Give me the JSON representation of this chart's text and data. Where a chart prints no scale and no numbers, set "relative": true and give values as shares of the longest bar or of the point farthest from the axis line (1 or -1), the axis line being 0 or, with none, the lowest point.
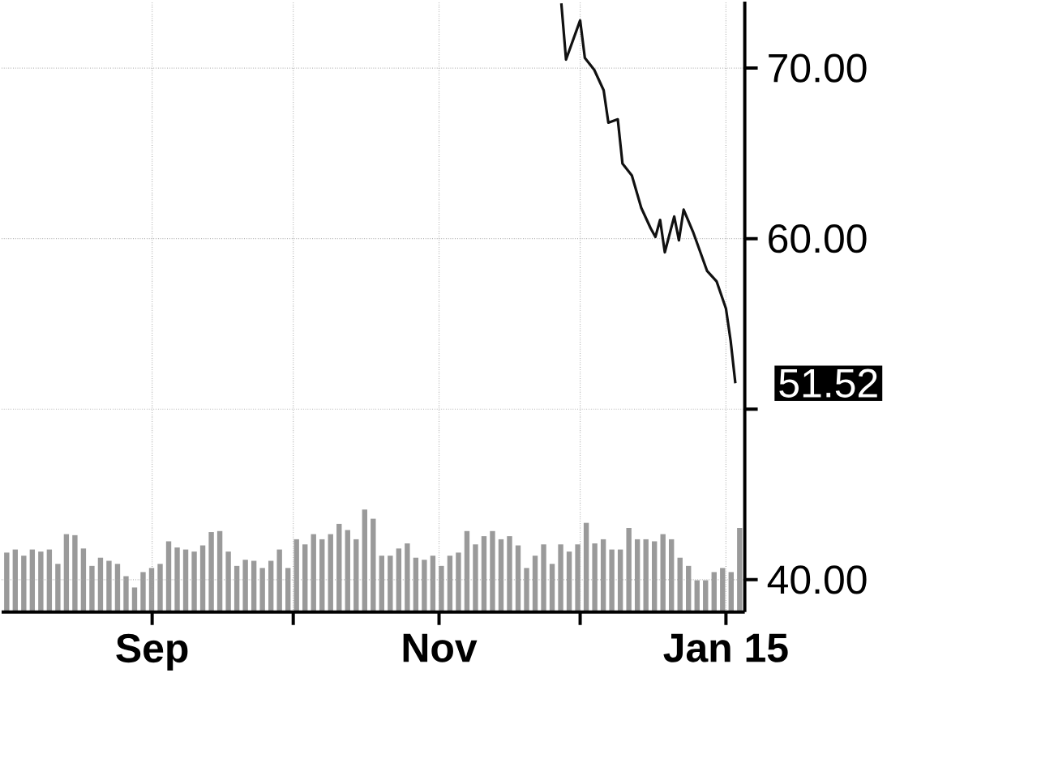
{
  "chart_data": [
    {
      "type": "line",
      "xlim": [
        "2014-07-31",
        "2015-01-05"
      ],
      "xticks": [
        {
          "value": "2014-09-01",
          "label": "Sep"
        },
        {
          "value": "2014-10-01",
          "label": null
        },
        {
          "value": "2014-11-01",
          "label": "Nov"
        },
        {
          "value": "2014-12-01",
          "label": null
        },
        {
          "value": "2015-01-01",
          "label": "Jan 15"
        }
      ],
      "ylim": [
        38.1,
        73.9
      ],
      "yticks": [
        {
          "value": 40,
          "label": "40.00"
        },
        {
          "value": 50,
          "label": null
        },
        {
          "value": 60,
          "label": "60.00"
        },
        {
          "value": 70,
          "label": "70.00"
        }
      ],
      "grid": true,
      "annotations": [
        {
          "text": "51.52",
          "x": "2015-01-03",
          "y": 51.52
        }
      ],
      "series": [
        {
          "color": "#111111",
          "x": [
            "2014-11-27",
            "2014-11-28",
            "2014-12-01",
            "2014-12-02",
            "2014-12-04",
            "2014-12-06",
            "2014-12-07",
            "2014-12-09",
            "2014-12-10",
            "2014-12-12",
            "2014-12-14",
            "2014-12-16",
            "2014-12-17",
            "2014-12-18",
            "2014-12-19",
            "2014-12-21",
            "2014-12-22",
            "2014-12-23",
            "2014-12-25",
            "2014-12-28",
            "2014-12-30",
            "2015-01-01",
            "2015-01-02",
            "2015-01-03"
          ],
          "values": [
            73.8,
            70.5,
            72.8,
            70.6,
            69.9,
            68.7,
            66.8,
            67.0,
            64.4,
            63.7,
            61.8,
            60.6,
            60.1,
            61.1,
            59.2,
            61.3,
            59.9,
            61.7,
            60.4,
            58.1,
            57.5,
            55.9,
            54.0,
            51.52
          ]
        }
      ]
    },
    {
      "type": "bar",
      "relative": true,
      "categories": [
        null,
        null,
        null,
        null,
        null,
        null,
        null,
        null,
        null,
        null,
        null,
        null,
        null,
        null,
        null,
        null,
        null,
        null,
        null,
        null,
        null,
        null,
        null,
        null,
        null,
        null,
        null,
        null,
        null,
        null,
        null,
        null,
        null,
        null,
        null,
        null,
        null,
        null,
        null,
        null,
        null,
        null,
        null,
        null,
        null,
        null,
        null,
        null,
        null,
        null,
        null,
        null,
        null,
        null,
        null,
        null,
        null,
        null,
        null,
        null,
        null,
        null,
        null,
        null,
        null,
        null,
        null,
        null,
        null,
        null,
        null,
        null,
        null,
        null,
        null,
        null,
        null,
        null,
        null,
        null,
        null,
        null,
        null,
        null,
        null,
        null,
        null
      ],
      "series": [
        {
          "color": "#9a9a9a",
          "values": [
            0.58,
            0.61,
            0.55,
            0.61,
            0.59,
            0.61,
            0.47,
            0.76,
            0.75,
            0.62,
            0.45,
            0.53,
            0.5,
            0.47,
            0.35,
            0.24,
            0.39,
            0.43,
            0.47,
            0.69,
            0.63,
            0.61,
            0.59,
            0.65,
            0.78,
            0.79,
            0.59,
            0.45,
            0.51,
            0.5,
            0.43,
            0.5,
            0.61,
            0.43,
            0.71,
            0.66,
            0.76,
            0.71,
            0.76,
            0.86,
            0.8,
            0.71,
            1,
            0.91,
            0.55,
            0.55,
            0.62,
            0.67,
            0.53,
            0.51,
            0.55,
            0.45,
            0.55,
            0.58,
            0.79,
            0.66,
            0.74,
            0.79,
            0.71,
            0.74,
            0.65,
            0.43,
            0.55,
            0.66,
            0.47,
            0.66,
            0.59,
            0.66,
            0.87,
            0.67,
            0.71,
            0.61,
            0.61,
            0.82,
            0.71,
            0.71,
            0.69,
            0.76,
            0.71,
            0.53,
            0.45,
            0.31,
            0.31,
            0.39,
            0.43,
            0.39,
            0.82
          ]
        }
      ]
    }
  ]
}
